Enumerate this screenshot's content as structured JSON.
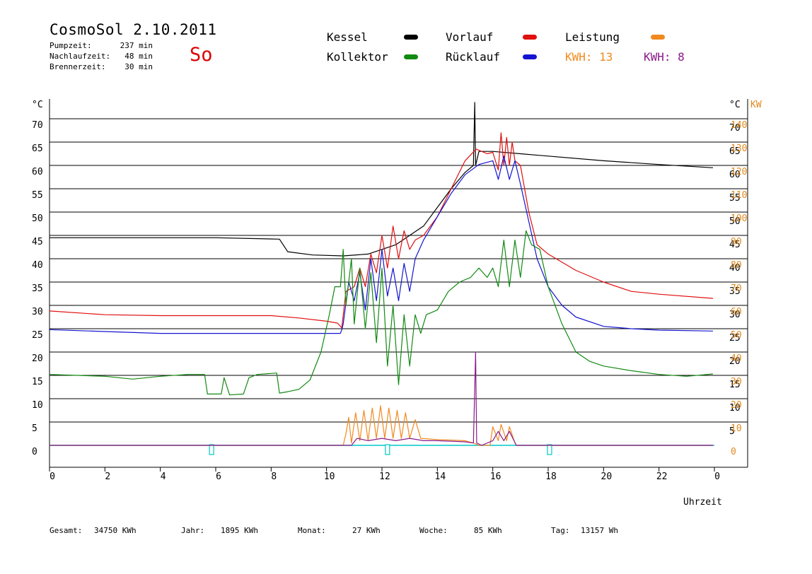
{
  "header": {
    "title": "CosmoSol 2.10.2011",
    "day": "So",
    "info": [
      {
        "label": "Pumpzeit:",
        "value": "237 min"
      },
      {
        "label": "Nachlaufzeit:",
        "value": "48 min"
      },
      {
        "label": "Brennerzeit:",
        "value": "30 min"
      }
    ]
  },
  "legend": {
    "items": [
      {
        "label": "Kessel",
        "color": "#000000"
      },
      {
        "label": "Vorlauf",
        "color": "#e01010"
      },
      {
        "label": "Leistung",
        "color": "#f08a20"
      },
      {
        "label": "Kollektor",
        "color": "#128a12"
      },
      {
        "label": "Rücklauf",
        "color": "#1414d0"
      }
    ],
    "kwh": [
      {
        "text": "KWH: 13",
        "color": "#f08a20"
      },
      {
        "text": "KWH: 8",
        "color": "#8a1a8a"
      }
    ]
  },
  "footer": [
    {
      "label": "Gesamt:",
      "value": "34750 KWh"
    },
    {
      "label": "Jahr:",
      "value": "1895 KWh"
    },
    {
      "label": "Monat:",
      "value": "27 KWh"
    },
    {
      "label": "Woche:",
      "value": "85 KWh"
    },
    {
      "label": "Tag:",
      "value": "13157 Wh"
    }
  ],
  "chart_data": {
    "type": "line",
    "x_unit": "hours",
    "xlim": [
      0,
      24
    ],
    "ylim": [
      0,
      75
    ],
    "y2lim": [
      0,
      150
    ],
    "xlabel": "Uhrzeit",
    "ylabel": "°C",
    "y2label": "KW",
    "left_axis_unit": "°C",
    "right_axis_units": [
      "°C",
      "KW"
    ],
    "x_ticks": [
      "0",
      "2",
      "4",
      "6",
      "8",
      "10",
      "12",
      "14",
      "16",
      "18",
      "20",
      "22",
      "0"
    ],
    "y_ticks": [
      0,
      5,
      10,
      15,
      20,
      25,
      30,
      35,
      40,
      45,
      50,
      55,
      60,
      65,
      70
    ],
    "y_ticks_right": [
      "",
      "5",
      "10",
      "15",
      "20",
      "25",
      "30",
      "35",
      "40",
      "45",
      "50",
      "55",
      "60",
      "65",
      "70"
    ],
    "y2_ticks": [
      0,
      10,
      20,
      30,
      40,
      50,
      60,
      70,
      80,
      90,
      100,
      110,
      120,
      130,
      140
    ],
    "grid": "horizontal",
    "series": [
      {
        "name": "Kessel",
        "color": "#000000",
        "points": [
          [
            0,
            44.5
          ],
          [
            3,
            44.5
          ],
          [
            6,
            44.5
          ],
          [
            8.3,
            44.2
          ],
          [
            8.6,
            41.5
          ],
          [
            9.5,
            40.8
          ],
          [
            10.6,
            40.6
          ],
          [
            11.5,
            41
          ],
          [
            12.5,
            43
          ],
          [
            13.5,
            47
          ],
          [
            14.5,
            55
          ],
          [
            15,
            58.5
          ],
          [
            15.3,
            60
          ],
          [
            15.35,
            73.5
          ],
          [
            15.38,
            60
          ],
          [
            15.5,
            63
          ],
          [
            16,
            63
          ],
          [
            17,
            62.5
          ],
          [
            18,
            62
          ],
          [
            20,
            61
          ],
          [
            22,
            60.2
          ],
          [
            23.95,
            59.5
          ]
        ]
      },
      {
        "name": "Vorlauf",
        "color": "#e01010",
        "points": [
          [
            0,
            28.8
          ],
          [
            2,
            28
          ],
          [
            4,
            27.8
          ],
          [
            6,
            27.8
          ],
          [
            8,
            27.8
          ],
          [
            9,
            27.3
          ],
          [
            10,
            26.6
          ],
          [
            10.4,
            26.2
          ],
          [
            10.55,
            25.2
          ],
          [
            10.7,
            33
          ],
          [
            11,
            34
          ],
          [
            11.2,
            38
          ],
          [
            11.4,
            34
          ],
          [
            11.6,
            41
          ],
          [
            11.8,
            37
          ],
          [
            12,
            45
          ],
          [
            12.2,
            38
          ],
          [
            12.4,
            47
          ],
          [
            12.6,
            40
          ],
          [
            12.8,
            46
          ],
          [
            13,
            42
          ],
          [
            13.2,
            44
          ],
          [
            13.5,
            45
          ],
          [
            14,
            49
          ],
          [
            14.5,
            55
          ],
          [
            15,
            61
          ],
          [
            15.4,
            63.5
          ],
          [
            15.8,
            62.5
          ],
          [
            16,
            62.8
          ],
          [
            16.2,
            59
          ],
          [
            16.3,
            67
          ],
          [
            16.4,
            60
          ],
          [
            16.5,
            66
          ],
          [
            16.6,
            60
          ],
          [
            16.7,
            65
          ],
          [
            16.8,
            61
          ],
          [
            17,
            60
          ],
          [
            17.3,
            50
          ],
          [
            17.6,
            43
          ],
          [
            18,
            41
          ],
          [
            19,
            37.5
          ],
          [
            20,
            35
          ],
          [
            21,
            33
          ],
          [
            22,
            32.4
          ],
          [
            23.95,
            31.5
          ]
        ]
      },
      {
        "name": "Rücklauf",
        "color": "#1414d0",
        "points": [
          [
            0,
            24.8
          ],
          [
            2,
            24.4
          ],
          [
            4,
            24
          ],
          [
            6,
            24
          ],
          [
            8,
            24
          ],
          [
            9,
            24
          ],
          [
            10,
            24
          ],
          [
            10.5,
            24
          ],
          [
            10.55,
            24.8
          ],
          [
            10.6,
            26
          ],
          [
            10.8,
            35
          ],
          [
            11,
            31
          ],
          [
            11.2,
            37
          ],
          [
            11.4,
            29
          ],
          [
            11.6,
            40
          ],
          [
            11.8,
            31
          ],
          [
            12,
            42
          ],
          [
            12.2,
            32
          ],
          [
            12.4,
            38
          ],
          [
            12.6,
            31
          ],
          [
            12.8,
            39
          ],
          [
            13,
            33
          ],
          [
            13.2,
            40
          ],
          [
            13.5,
            44
          ],
          [
            14,
            49
          ],
          [
            14.5,
            54
          ],
          [
            15,
            58
          ],
          [
            15.5,
            60.2
          ],
          [
            16,
            61
          ],
          [
            16.2,
            57
          ],
          [
            16.4,
            62
          ],
          [
            16.6,
            57
          ],
          [
            16.8,
            61
          ],
          [
            17,
            56
          ],
          [
            17.3,
            48
          ],
          [
            17.6,
            40
          ],
          [
            18,
            34
          ],
          [
            18.5,
            30
          ],
          [
            19,
            27.5
          ],
          [
            20,
            25.5
          ],
          [
            21,
            25
          ],
          [
            22,
            24.7
          ],
          [
            23.95,
            24.5
          ]
        ]
      },
      {
        "name": "Kollektor",
        "color": "#128a12",
        "points": [
          [
            0,
            15.2
          ],
          [
            1,
            15
          ],
          [
            2,
            14.8
          ],
          [
            3,
            14.2
          ],
          [
            4,
            14.8
          ],
          [
            5,
            15.2
          ],
          [
            5.6,
            15.2
          ],
          [
            5.7,
            11
          ],
          [
            6.2,
            11
          ],
          [
            6.3,
            14.5
          ],
          [
            6.5,
            10.8
          ],
          [
            7,
            11
          ],
          [
            7.2,
            14.5
          ],
          [
            7.5,
            15.2
          ],
          [
            8.2,
            15.5
          ],
          [
            8.3,
            11.2
          ],
          [
            8.6,
            11.5
          ],
          [
            9,
            12
          ],
          [
            9.4,
            14
          ],
          [
            9.8,
            20
          ],
          [
            10.1,
            28
          ],
          [
            10.3,
            34
          ],
          [
            10.5,
            34
          ],
          [
            10.6,
            42
          ],
          [
            10.7,
            30
          ],
          [
            10.9,
            40
          ],
          [
            11,
            26
          ],
          [
            11.2,
            38
          ],
          [
            11.4,
            25
          ],
          [
            11.6,
            37
          ],
          [
            11.8,
            22
          ],
          [
            12,
            38
          ],
          [
            12.2,
            17
          ],
          [
            12.4,
            30
          ],
          [
            12.6,
            13
          ],
          [
            12.8,
            28
          ],
          [
            13,
            17
          ],
          [
            13.2,
            28
          ],
          [
            13.4,
            24
          ],
          [
            13.6,
            28
          ],
          [
            14,
            29
          ],
          [
            14.4,
            33
          ],
          [
            14.8,
            35
          ],
          [
            15.2,
            36
          ],
          [
            15.5,
            38
          ],
          [
            15.8,
            36
          ],
          [
            16,
            38
          ],
          [
            16.2,
            34
          ],
          [
            16.4,
            44
          ],
          [
            16.6,
            34
          ],
          [
            16.8,
            44
          ],
          [
            17,
            36
          ],
          [
            17.2,
            46
          ],
          [
            17.4,
            43
          ],
          [
            17.7,
            42
          ],
          [
            18,
            34
          ],
          [
            18.5,
            26
          ],
          [
            19,
            20
          ],
          [
            19.5,
            18
          ],
          [
            20,
            17
          ],
          [
            21,
            16
          ],
          [
            22,
            15.2
          ],
          [
            23,
            14.8
          ],
          [
            23.95,
            15.3
          ]
        ]
      },
      {
        "name": "Leistung",
        "color": "#f08a20",
        "axis": "y2",
        "points": [
          [
            0,
            0
          ],
          [
            10.6,
            0
          ],
          [
            10.7,
            5
          ],
          [
            10.8,
            12
          ],
          [
            10.9,
            1
          ],
          [
            11.05,
            14
          ],
          [
            11.2,
            2
          ],
          [
            11.35,
            15
          ],
          [
            11.5,
            2
          ],
          [
            11.65,
            16
          ],
          [
            11.8,
            3
          ],
          [
            11.95,
            17
          ],
          [
            12.1,
            3
          ],
          [
            12.25,
            16
          ],
          [
            12.4,
            3
          ],
          [
            12.55,
            15
          ],
          [
            12.7,
            3
          ],
          [
            12.85,
            14
          ],
          [
            13,
            3
          ],
          [
            13.2,
            11
          ],
          [
            13.4,
            3
          ],
          [
            14,
            2.5
          ],
          [
            15,
            2
          ],
          [
            15.3,
            1
          ],
          [
            15.5,
            0
          ],
          [
            15.9,
            0
          ],
          [
            16,
            8
          ],
          [
            16.2,
            2
          ],
          [
            16.3,
            9
          ],
          [
            16.5,
            2
          ],
          [
            16.6,
            8
          ],
          [
            16.8,
            1
          ],
          [
            16.85,
            0
          ],
          [
            23.95,
            0
          ]
        ]
      },
      {
        "name": "KWH 8",
        "color": "#8a1a8a",
        "axis": "y2",
        "points": [
          [
            0,
            0
          ],
          [
            10.9,
            0
          ],
          [
            11.1,
            3
          ],
          [
            11.5,
            2
          ],
          [
            12,
            3
          ],
          [
            12.5,
            2
          ],
          [
            13,
            3
          ],
          [
            13.5,
            2
          ],
          [
            14,
            2
          ],
          [
            15,
            1.5
          ],
          [
            15.3,
            1
          ],
          [
            15.38,
            40
          ],
          [
            15.42,
            1
          ],
          [
            15.6,
            0
          ],
          [
            16,
            2
          ],
          [
            16.2,
            6
          ],
          [
            16.4,
            2
          ],
          [
            16.6,
            6
          ],
          [
            16.85,
            0
          ],
          [
            23.95,
            0
          ]
        ]
      }
    ],
    "annotations": [
      {
        "type": "marker",
        "x": 5.85,
        "color": "#00c8c8"
      },
      {
        "type": "marker",
        "x": 12.2,
        "color": "#00c8c8"
      },
      {
        "type": "marker",
        "x": 18.05,
        "color": "#00c8c8"
      }
    ],
    "baseline_color": "#00c8c8"
  }
}
